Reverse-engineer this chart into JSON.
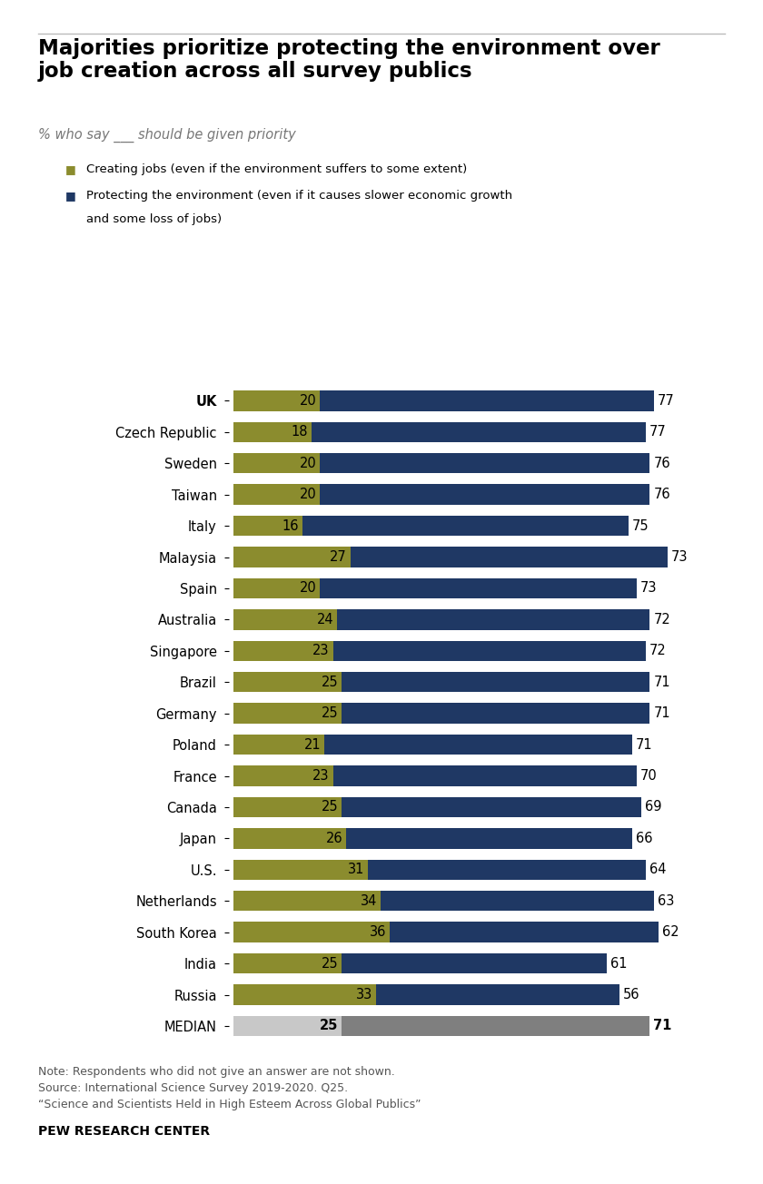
{
  "title": "Majorities prioritize protecting the environment over\njob creation across all survey publics",
  "subtitle": "% who say ___ should be given priority",
  "legend_jobs": "Creating jobs (even if the environment suffers to some extent)",
  "legend_env_line1": "Protecting the environment (even if it causes slower economic growth",
  "legend_env_line2": "and some loss of jobs)",
  "countries": [
    "UK",
    "Czech Republic",
    "Sweden",
    "Taiwan",
    "Italy",
    "Malaysia",
    "Spain",
    "Australia",
    "Singapore",
    "Brazil",
    "Germany",
    "Poland",
    "France",
    "Canada",
    "Japan",
    "U.S.",
    "Netherlands",
    "South Korea",
    "India",
    "Russia",
    "MEDIAN"
  ],
  "jobs_values": [
    20,
    18,
    20,
    20,
    16,
    27,
    20,
    24,
    23,
    25,
    25,
    21,
    23,
    25,
    26,
    31,
    34,
    36,
    25,
    33,
    25
  ],
  "env_values": [
    77,
    77,
    76,
    76,
    75,
    73,
    73,
    72,
    72,
    71,
    71,
    71,
    70,
    69,
    66,
    64,
    63,
    62,
    61,
    56,
    71
  ],
  "jobs_color": "#8b8c2e",
  "env_color": "#1f3864",
  "median_jobs_color": "#c8c8c8",
  "median_env_color": "#7f7f7f",
  "note_line1": "Note: Respondents who did not give an answer are not shown.",
  "note_line2": "Source: International Science Survey 2019-2020. Q25.",
  "note_line3": "“Science and Scientists Held in High Esteem Across Global Publics”",
  "footer": "PEW RESEARCH CENTER",
  "background_color": "#ffffff"
}
